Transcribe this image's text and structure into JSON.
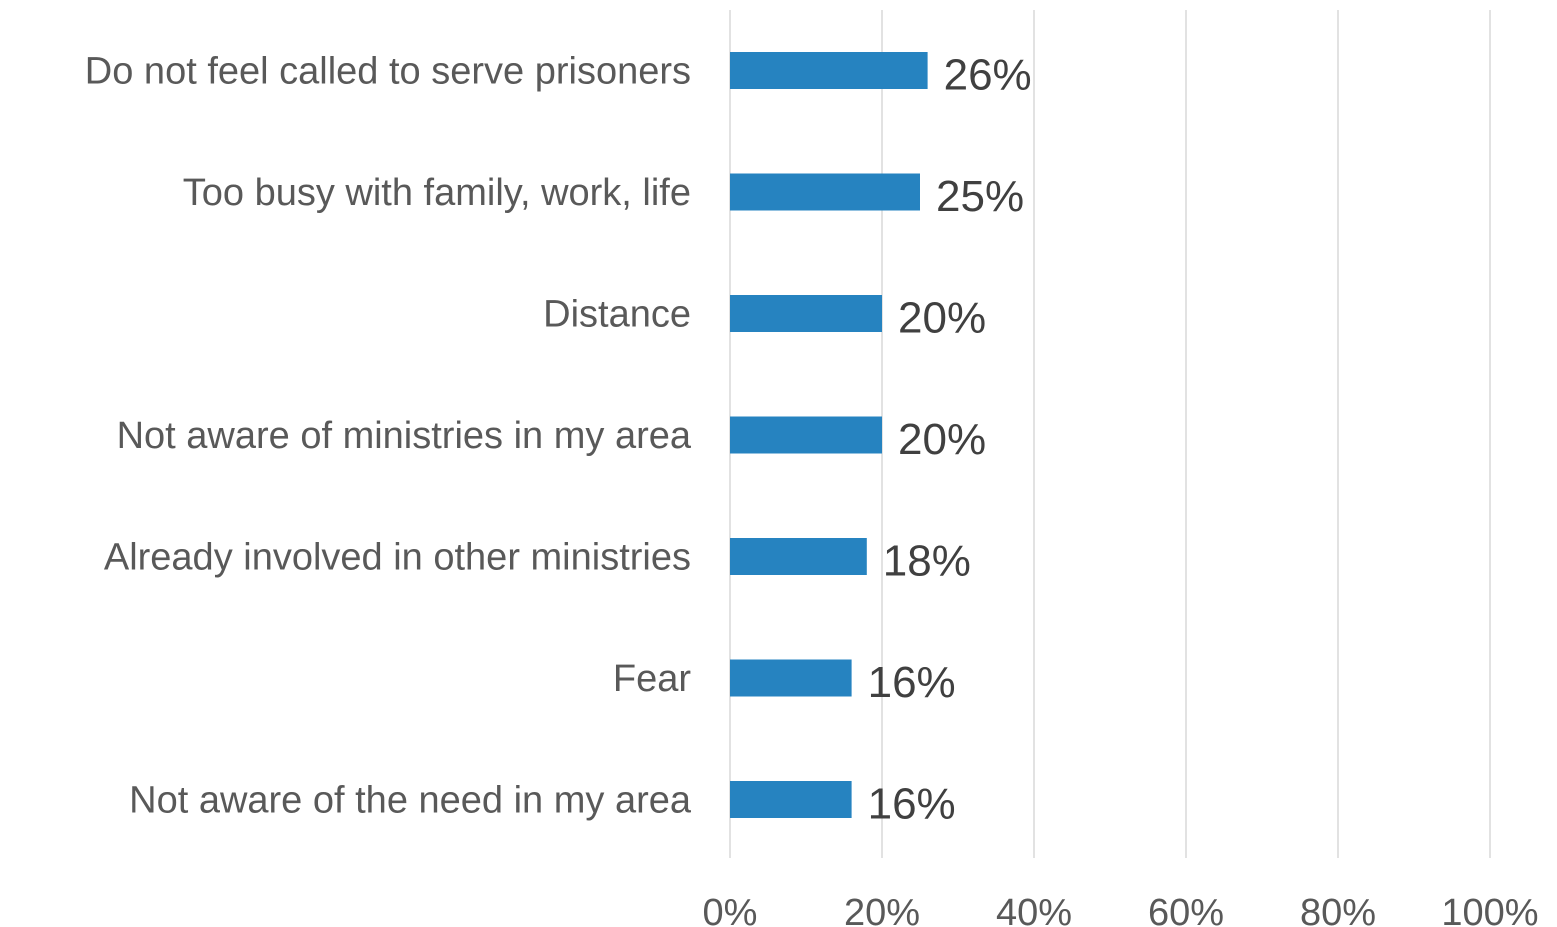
{
  "chart_data": {
    "type": "bar",
    "orientation": "horizontal",
    "categories": [
      "Do not feel called to serve prisoners",
      "Too busy with family, work, life",
      "Distance",
      "Not aware of ministries in my area",
      "Already involved in other ministries",
      "Fear",
      "Not aware of the need in my area"
    ],
    "values": [
      26,
      25,
      20,
      20,
      18,
      16,
      16
    ],
    "data_labels": [
      "26%",
      "25%",
      "20%",
      "20%",
      "18%",
      "16%",
      "16%"
    ],
    "x_ticks": [
      "0%",
      "20%",
      "40%",
      "60%",
      "80%",
      "100%"
    ],
    "xlim": [
      0,
      100
    ],
    "title": "",
    "xlabel": "",
    "ylabel": "",
    "grid": "vertical",
    "legend": "none",
    "colors": {
      "bar": "#2683c0",
      "gridline": "#d9d9d9",
      "category_text": "#595959",
      "data_label_text": "#404040"
    }
  }
}
